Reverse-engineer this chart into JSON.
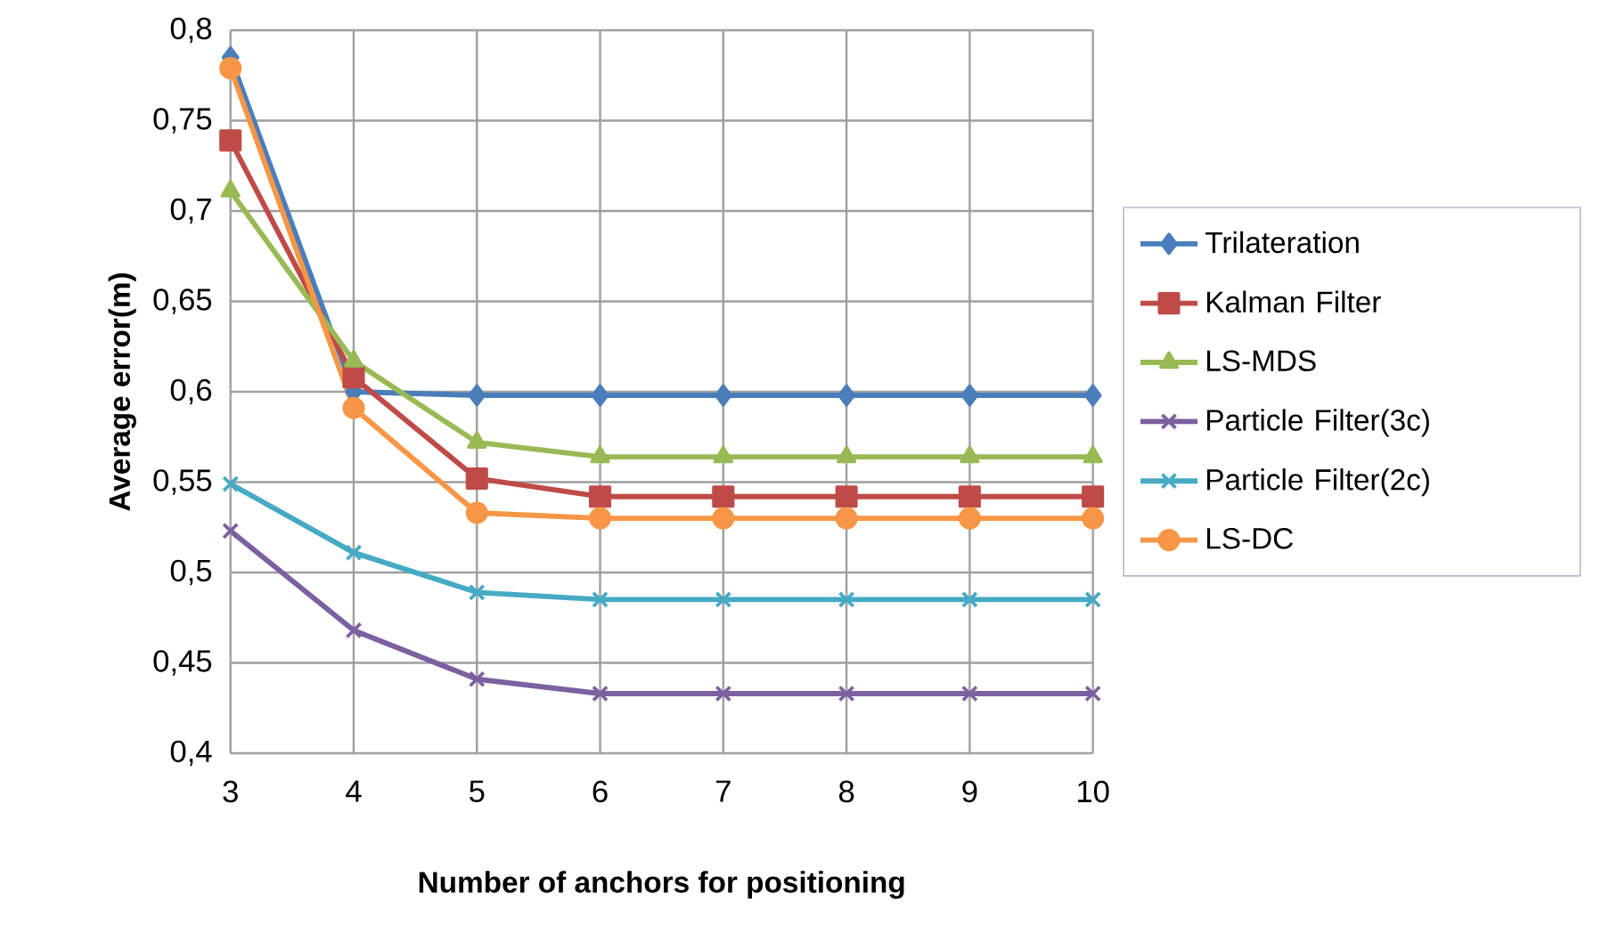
{
  "chart_data": {
    "type": "line",
    "xlabel": "Number of anchors for positioning",
    "ylabel": "Average error(m)",
    "x": [
      3,
      4,
      5,
      6,
      7,
      8,
      9,
      10
    ],
    "xlim": [
      3,
      10
    ],
    "xticks": [
      3,
      4,
      5,
      6,
      7,
      8,
      9,
      10
    ],
    "ylim": [
      0.4,
      0.8
    ],
    "yticks": [
      {
        "value": 0.4,
        "label": "0,4"
      },
      {
        "value": 0.45,
        "label": "0,45"
      },
      {
        "value": 0.5,
        "label": "0,5"
      },
      {
        "value": 0.55,
        "label": "0,55"
      },
      {
        "value": 0.6,
        "label": "0,6"
      },
      {
        "value": 0.65,
        "label": "0,65"
      },
      {
        "value": 0.7,
        "label": "0,7"
      },
      {
        "value": 0.75,
        "label": "0,75"
      },
      {
        "value": 0.8,
        "label": "0,8"
      }
    ],
    "grid": true,
    "legend": "right",
    "line_style": "solid",
    "series": [
      {
        "name": "Trilateration",
        "color": "#4a7ebb",
        "marker": "diamond",
        "values": [
          0.785,
          0.6,
          0.598,
          0.598,
          0.598,
          0.598,
          0.598,
          0.598
        ]
      },
      {
        "name": "Kalman Filter",
        "color": "#be4b48",
        "marker": "square",
        "values": [
          0.739,
          0.608,
          0.552,
          0.542,
          0.542,
          0.542,
          0.542,
          0.542
        ]
      },
      {
        "name": "LS-MDS",
        "color": "#98b954",
        "marker": "triangle",
        "values": [
          0.711,
          0.617,
          0.572,
          0.564,
          0.564,
          0.564,
          0.564,
          0.564
        ]
      },
      {
        "name": "Particle Filter(3c)",
        "color": "#7d60a0",
        "marker": "cross",
        "values": [
          0.523,
          0.468,
          0.441,
          0.433,
          0.433,
          0.433,
          0.433,
          0.433
        ]
      },
      {
        "name": "Particle Filter(2c)",
        "color": "#46aac5",
        "marker": "cross",
        "values": [
          0.549,
          0.511,
          0.489,
          0.485,
          0.485,
          0.485,
          0.485,
          0.485
        ]
      },
      {
        "name": "LS-DC",
        "color": "#f79646",
        "marker": "circle",
        "values": [
          0.779,
          0.591,
          0.533,
          0.53,
          0.53,
          0.53,
          0.53,
          0.53
        ]
      }
    ]
  }
}
